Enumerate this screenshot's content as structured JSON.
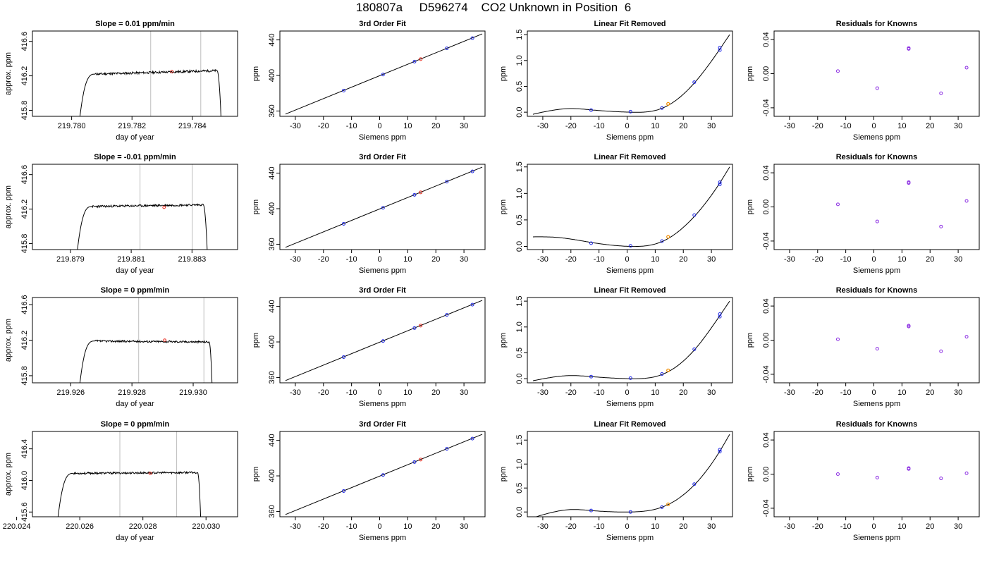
{
  "page": {
    "title": "180807a     D596274    CO2 Unknown in Position  6"
  },
  "colors": {
    "trace": "#000000",
    "marker_vline": "#bdbdbd",
    "unknown_point": "#e8271b",
    "unknown_point_lfr": "#f08c00",
    "known_points": "#1f28e6",
    "residual_points": "#8a2be2"
  },
  "chart_data": [
    {
      "type": "line",
      "panel": "trace",
      "row": 0,
      "title": "Slope =  0.01  ppm/min",
      "xlabel": "day of year",
      "ylabel": "approx. ppm",
      "xlim": [
        219.7787,
        219.7855
      ],
      "ylim": [
        415.73,
        416.72
      ],
      "xticks": [
        219.78,
        219.782,
        219.784
      ],
      "xtick_labels": [
        "219.780",
        "219.782",
        "219.784"
      ],
      "yticks": [
        415.8,
        416.2,
        416.6
      ],
      "ytick_labels": [
        "415.8",
        "416.2",
        "416.6"
      ],
      "vlines": [
        219.78262,
        219.78428
      ],
      "unknown_point": {
        "x": 219.78332,
        "y": 416.25
      },
      "trace": {
        "rise_start": 219.78022,
        "plateau_start": 219.78078,
        "plateau_end": 219.78482,
        "fall_end": 219.78497,
        "base": 415.55,
        "plateau": 416.22,
        "plateau_end_level": 416.26,
        "noise": 0.013,
        "seed": 11
      }
    },
    {
      "type": "scatter",
      "panel": "fit",
      "row": 0,
      "title": "3rd Order Fit",
      "xlabel": "Siemens ppm",
      "ylabel": "ppm",
      "xlim": [
        -35.5,
        37.5
      ],
      "ylim": [
        354,
        450
      ],
      "xticks": [
        -30,
        -20,
        -10,
        0,
        10,
        20,
        30
      ],
      "xtick_labels": [
        "-30",
        "-20",
        "-10",
        "0",
        "10",
        "20",
        "30"
      ],
      "yticks": [
        360,
        400,
        440
      ],
      "ytick_labels": [
        "360",
        "400",
        "440"
      ],
      "fit_line": {
        "x": [
          -33.5,
          36.5
        ],
        "y": [
          356.5,
          446.8
        ]
      },
      "knowns": [
        {
          "x": -12.8,
          "y": 383.0
        },
        {
          "x": 1.2,
          "y": 401.0
        },
        {
          "x": 12.4,
          "y": 415.6
        },
        {
          "x": 23.9,
          "y": 430.5
        },
        {
          "x": 33.0,
          "y": 442.0
        }
      ],
      "unknown": {
        "x": 14.6,
        "y": 418.4
      }
    },
    {
      "type": "scatter",
      "panel": "lfr",
      "row": 0,
      "title": "Linear Fit Removed",
      "xlabel": "Siemens ppm",
      "ylabel": "ppm",
      "xlim": [
        -35.5,
        37.5
      ],
      "ylim": [
        -0.08,
        1.57
      ],
      "xticks": [
        -30,
        -20,
        -10,
        0,
        10,
        20,
        30
      ],
      "xtick_labels": [
        "-30",
        "-20",
        "-10",
        "0",
        "10",
        "20",
        "30"
      ],
      "yticks": [
        0.0,
        0.5,
        1.0,
        1.5
      ],
      "ytick_labels": [
        "0.0",
        "0.5",
        "1.0",
        "1.5"
      ],
      "curve": {
        "x": [
          -33.5,
          -20,
          -12.8,
          1.2,
          12.4,
          24.0,
          33.0,
          36.5
        ],
        "y": [
          -0.04,
          0.07,
          0.045,
          0.0,
          0.075,
          0.57,
          1.22,
          1.5
        ]
      },
      "knowns": [
        {
          "x": -12.8,
          "y": 0.04
        },
        {
          "x": 1.2,
          "y": 0.01
        },
        {
          "x": 12.4,
          "y": 0.08
        },
        {
          "x": 23.9,
          "y": 0.58
        },
        {
          "x": 33.0,
          "y": 1.2
        },
        {
          "x": 33.0,
          "y": 1.25
        }
      ],
      "unknown": {
        "x": 14.6,
        "y": 0.16
      }
    },
    {
      "type": "scatter",
      "panel": "res",
      "row": 0,
      "title": "Residuals for Knowns",
      "xlabel": "Siemens ppm",
      "ylabel": "ppm",
      "xlim": [
        -35.5,
        37.5
      ],
      "ylim": [
        -0.05,
        0.05
      ],
      "xticks": [
        -30,
        -20,
        -10,
        0,
        10,
        20,
        30
      ],
      "xtick_labels": [
        "-30",
        "-20",
        "-10",
        "0",
        "10",
        "20",
        "30"
      ],
      "yticks": [
        -0.04,
        0.0,
        0.04
      ],
      "ytick_labels": [
        "-0.04",
        "0.00",
        "0.04"
      ],
      "points": [
        {
          "x": -12.8,
          "y": 0.003
        },
        {
          "x": 1.2,
          "y": -0.017
        },
        {
          "x": 12.4,
          "y": 0.029
        },
        {
          "x": 12.4,
          "y": 0.03
        },
        {
          "x": 23.9,
          "y": -0.023
        },
        {
          "x": 33.0,
          "y": 0.007
        }
      ]
    },
    {
      "type": "line",
      "panel": "trace",
      "row": 1,
      "title": "Slope =  -0.01  ppm/min",
      "xlabel": "day of year",
      "ylabel": "approx. ppm",
      "xlim": [
        219.87775,
        219.8845
      ],
      "ylim": [
        415.73,
        416.72
      ],
      "xticks": [
        219.879,
        219.881,
        219.883
      ],
      "xtick_labels": [
        "219.879",
        "219.881",
        "219.883"
      ],
      "yticks": [
        415.8,
        416.2,
        416.6
      ],
      "ytick_labels": [
        "415.8",
        "416.2",
        "416.6"
      ],
      "vlines": [
        219.88129,
        219.88301
      ],
      "unknown_point": {
        "x": 219.88208,
        "y": 416.22
      },
      "trace": {
        "rise_start": 219.87918,
        "plateau_start": 219.87972,
        "plateau_end": 219.88337,
        "fall_end": 219.88352,
        "base": 415.55,
        "plateau": 416.23,
        "plateau_end_level": 416.25,
        "noise": 0.012,
        "seed": 23
      }
    },
    {
      "type": "scatter",
      "panel": "fit",
      "row": 1,
      "title": "3rd Order Fit",
      "xlabel": "Siemens ppm",
      "ylabel": "ppm",
      "xlim": [
        -35.5,
        37.5
      ],
      "ylim": [
        354,
        450
      ],
      "xticks": [
        -30,
        -20,
        -10,
        0,
        10,
        20,
        30
      ],
      "xtick_labels": [
        "-30",
        "-20",
        "-10",
        "0",
        "10",
        "20",
        "30"
      ],
      "yticks": [
        360,
        400,
        440
      ],
      "ytick_labels": [
        "360",
        "400",
        "440"
      ],
      "fit_line": {
        "x": [
          -33.5,
          36.5
        ],
        "y": [
          356.5,
          446.8
        ]
      },
      "knowns": [
        {
          "x": -12.8,
          "y": 383.0
        },
        {
          "x": 1.2,
          "y": 401.0
        },
        {
          "x": 12.4,
          "y": 415.6
        },
        {
          "x": 23.9,
          "y": 430.5
        },
        {
          "x": 33.0,
          "y": 442.0
        }
      ],
      "unknown": {
        "x": 14.6,
        "y": 418.4
      }
    },
    {
      "type": "scatter",
      "panel": "lfr",
      "row": 1,
      "title": "Linear Fit Removed",
      "xlabel": "Siemens ppm",
      "ylabel": "ppm",
      "xlim": [
        -35.5,
        37.5
      ],
      "ylim": [
        -0.06,
        1.55
      ],
      "xticks": [
        -30,
        -20,
        -10,
        0,
        10,
        20,
        30
      ],
      "xtick_labels": [
        "-30",
        "-20",
        "-10",
        "0",
        "10",
        "20",
        "30"
      ],
      "yticks": [
        0.0,
        0.5,
        1.0,
        1.5
      ],
      "ytick_labels": [
        "0.0",
        "0.5",
        "1.0",
        "1.5"
      ],
      "curve": {
        "x": [
          -33.5,
          -25,
          -12.8,
          1.2,
          12.4,
          24.0,
          33.0,
          36.5
        ],
        "y": [
          0.18,
          0.17,
          0.075,
          0.0,
          0.09,
          0.57,
          1.2,
          1.5
        ]
      },
      "knowns": [
        {
          "x": -12.8,
          "y": 0.06
        },
        {
          "x": 1.2,
          "y": 0.01
        },
        {
          "x": 12.4,
          "y": 0.1
        },
        {
          "x": 23.9,
          "y": 0.59
        },
        {
          "x": 33.0,
          "y": 1.17
        },
        {
          "x": 33.0,
          "y": 1.21
        }
      ],
      "unknown": {
        "x": 14.6,
        "y": 0.18
      }
    },
    {
      "type": "scatter",
      "panel": "res",
      "row": 1,
      "title": "Residuals for Knowns",
      "xlabel": "Siemens ppm",
      "ylabel": "ppm",
      "xlim": [
        -35.5,
        37.5
      ],
      "ylim": [
        -0.05,
        0.05
      ],
      "xticks": [
        -30,
        -20,
        -10,
        0,
        10,
        20,
        30
      ],
      "xtick_labels": [
        "-30",
        "-20",
        "-10",
        "0",
        "10",
        "20",
        "30"
      ],
      "yticks": [
        -0.04,
        0.0,
        0.04
      ],
      "ytick_labels": [
        "-0.04",
        "0.00",
        "0.04"
      ],
      "points": [
        {
          "x": -12.8,
          "y": 0.003
        },
        {
          "x": 1.2,
          "y": -0.017
        },
        {
          "x": 12.4,
          "y": 0.028
        },
        {
          "x": 12.4,
          "y": 0.029
        },
        {
          "x": 23.9,
          "y": -0.023
        },
        {
          "x": 33.0,
          "y": 0.007
        }
      ]
    },
    {
      "type": "line",
      "panel": "trace",
      "row": 2,
      "title": "Slope =  0  ppm/min",
      "xlabel": "day of year",
      "ylabel": "approx. ppm",
      "xlim": [
        219.92475,
        219.93145
      ],
      "ylim": [
        415.72,
        416.68
      ],
      "xticks": [
        219.926,
        219.928,
        219.93
      ],
      "xtick_labels": [
        "219.926",
        "219.928",
        "219.930"
      ],
      "yticks": [
        415.8,
        416.2,
        416.6
      ],
      "ytick_labels": [
        "415.8",
        "416.2",
        "416.6"
      ],
      "vlines": [
        219.92822,
        219.93035
      ],
      "unknown_point": {
        "x": 219.92907,
        "y": 416.2
      },
      "trace": {
        "rise_start": 219.92625,
        "plateau_start": 219.92678,
        "plateau_end": 219.93052,
        "fall_end": 219.93063,
        "base": 415.55,
        "plateau": 416.19,
        "plateau_end_level": 416.18,
        "noise": 0.011,
        "seed": 37
      }
    },
    {
      "type": "scatter",
      "panel": "fit",
      "row": 2,
      "title": "3rd Order Fit",
      "xlabel": "Siemens ppm",
      "ylabel": "ppm",
      "xlim": [
        -35.5,
        37.5
      ],
      "ylim": [
        354,
        450
      ],
      "xticks": [
        -30,
        -20,
        -10,
        0,
        10,
        20,
        30
      ],
      "xtick_labels": [
        "-30",
        "-20",
        "-10",
        "0",
        "10",
        "20",
        "30"
      ],
      "yticks": [
        360,
        400,
        440
      ],
      "ytick_labels": [
        "360",
        "400",
        "440"
      ],
      "fit_line": {
        "x": [
          -33.5,
          36.5
        ],
        "y": [
          356.5,
          446.8
        ]
      },
      "knowns": [
        {
          "x": -12.8,
          "y": 383.0
        },
        {
          "x": 1.2,
          "y": 401.0
        },
        {
          "x": 12.4,
          "y": 415.6
        },
        {
          "x": 23.9,
          "y": 430.5
        },
        {
          "x": 33.0,
          "y": 442.0
        }
      ],
      "unknown": {
        "x": 14.6,
        "y": 418.4
      }
    },
    {
      "type": "scatter",
      "panel": "lfr",
      "row": 2,
      "title": "Linear Fit Removed",
      "xlabel": "Siemens ppm",
      "ylabel": "ppm",
      "xlim": [
        -35.5,
        37.5
      ],
      "ylim": [
        -0.08,
        1.57
      ],
      "xticks": [
        -30,
        -20,
        -10,
        0,
        10,
        20,
        30
      ],
      "xtick_labels": [
        "-30",
        "-20",
        "-10",
        "0",
        "10",
        "20",
        "30"
      ],
      "yticks": [
        0.0,
        0.5,
        1.0,
        1.5
      ],
      "ytick_labels": [
        "0.0",
        "0.5",
        "1.0",
        "1.5"
      ],
      "curve": {
        "x": [
          -33.5,
          -20,
          -12.8,
          1.2,
          12.4,
          24.0,
          33.0,
          36.5
        ],
        "y": [
          -0.04,
          0.06,
          0.04,
          0.0,
          0.08,
          0.56,
          1.22,
          1.5
        ]
      },
      "knowns": [
        {
          "x": -12.8,
          "y": 0.04
        },
        {
          "x": 1.2,
          "y": 0.01
        },
        {
          "x": 12.4,
          "y": 0.09
        },
        {
          "x": 23.9,
          "y": 0.57
        },
        {
          "x": 33.0,
          "y": 1.2
        },
        {
          "x": 33.0,
          "y": 1.25
        }
      ],
      "unknown": {
        "x": 14.6,
        "y": 0.16
      }
    },
    {
      "type": "scatter",
      "panel": "res",
      "row": 2,
      "title": "Residuals for Knowns",
      "xlabel": "Siemens ppm",
      "ylabel": "ppm",
      "xlim": [
        -35.5,
        37.5
      ],
      "ylim": [
        -0.05,
        0.05
      ],
      "xticks": [
        -30,
        -20,
        -10,
        0,
        10,
        20,
        30
      ],
      "xtick_labels": [
        "-30",
        "-20",
        "-10",
        "0",
        "10",
        "20",
        "30"
      ],
      "yticks": [
        -0.04,
        0.0,
        0.04
      ],
      "ytick_labels": [
        "-0.04",
        "0.00",
        "0.04"
      ],
      "points": [
        {
          "x": -12.8,
          "y": 0.001
        },
        {
          "x": 1.2,
          "y": -0.01
        },
        {
          "x": 12.4,
          "y": 0.016
        },
        {
          "x": 12.4,
          "y": 0.017
        },
        {
          "x": 23.9,
          "y": -0.013
        },
        {
          "x": 33.0,
          "y": 0.004
        }
      ]
    },
    {
      "type": "line",
      "panel": "trace",
      "row": 3,
      "title": "Slope =  0  ppm/min",
      "xlabel": "day of year",
      "ylabel": "approx. ppm",
      "xlim": [
        220.0245,
        220.031
      ],
      "ylim": [
        415.54,
        416.62
      ],
      "xticks": [
        220.024,
        220.026,
        220.028,
        220.03
      ],
      "xtick_labels": [
        "220.024",
        "220.026",
        "220.028",
        "220.030"
      ],
      "yticks": [
        415.6,
        416.0,
        416.4
      ],
      "ytick_labels": [
        "415.6",
        "416.0",
        "416.4"
      ],
      "vlines": [
        220.02727,
        220.02907
      ],
      "unknown_point": {
        "x": 220.02823,
        "y": 416.09
      },
      "trace": {
        "rise_start": 220.02525,
        "plateau_start": 220.0258,
        "plateau_end": 220.02973,
        "fall_end": 220.02985,
        "base": 415.3,
        "plateau": 416.09,
        "plateau_end_level": 416.1,
        "noise": 0.012,
        "seed": 53
      }
    },
    {
      "type": "scatter",
      "panel": "fit",
      "row": 3,
      "title": "3rd Order Fit",
      "xlabel": "Siemens ppm",
      "ylabel": "ppm",
      "xlim": [
        -35.5,
        37.5
      ],
      "ylim": [
        354,
        450
      ],
      "xticks": [
        -30,
        -20,
        -10,
        0,
        10,
        20,
        30
      ],
      "xtick_labels": [
        "-30",
        "-20",
        "-10",
        "0",
        "10",
        "20",
        "30"
      ],
      "yticks": [
        360,
        400,
        440
      ],
      "ytick_labels": [
        "360",
        "400",
        "440"
      ],
      "fit_line": {
        "x": [
          -33.5,
          36.5
        ],
        "y": [
          356.5,
          446.8
        ]
      },
      "knowns": [
        {
          "x": -12.8,
          "y": 383.0
        },
        {
          "x": 1.2,
          "y": 401.0
        },
        {
          "x": 12.4,
          "y": 415.6
        },
        {
          "x": 23.9,
          "y": 430.5
        },
        {
          "x": 33.0,
          "y": 442.0
        }
      ],
      "unknown": {
        "x": 14.6,
        "y": 418.4
      }
    },
    {
      "type": "scatter",
      "panel": "lfr",
      "row": 3,
      "title": "Linear Fit Removed",
      "xlabel": "Siemens ppm",
      "ylabel": "ppm",
      "xlim": [
        -35.5,
        37.5
      ],
      "ylim": [
        -0.1,
        1.68
      ],
      "xticks": [
        -30,
        -20,
        -10,
        0,
        10,
        20,
        30
      ],
      "xtick_labels": [
        "-30",
        "-20",
        "-10",
        "0",
        "10",
        "20",
        "30"
      ],
      "yticks": [
        0.0,
        0.5,
        1.0,
        1.5
      ],
      "ytick_labels": [
        "0.0",
        "0.5",
        "1.0",
        "1.5"
      ],
      "curve": {
        "x": [
          -33.5,
          -20,
          -12.8,
          1.2,
          12.4,
          24.0,
          33.0,
          36.5
        ],
        "y": [
          -0.12,
          0.05,
          0.03,
          0.0,
          0.1,
          0.57,
          1.27,
          1.62
        ]
      },
      "knowns": [
        {
          "x": -12.8,
          "y": 0.03
        },
        {
          "x": 1.2,
          "y": 0.0
        },
        {
          "x": 12.4,
          "y": 0.1
        },
        {
          "x": 23.9,
          "y": 0.58
        },
        {
          "x": 33.0,
          "y": 1.26
        },
        {
          "x": 33.0,
          "y": 1.3
        }
      ],
      "unknown": {
        "x": 14.6,
        "y": 0.16
      }
    },
    {
      "type": "scatter",
      "panel": "res",
      "row": 3,
      "title": "Residuals for Knowns",
      "xlabel": "Siemens ppm",
      "ylabel": "ppm",
      "xlim": [
        -35.5,
        37.5
      ],
      "ylim": [
        -0.05,
        0.05
      ],
      "xticks": [
        -30,
        -20,
        -10,
        0,
        10,
        20,
        30
      ],
      "xtick_labels": [
        "-30",
        "-20",
        "-10",
        "0",
        "10",
        "20",
        "30"
      ],
      "yticks": [
        -0.04,
        0.0,
        0.04
      ],
      "ytick_labels": [
        "-0.04",
        "0.00",
        "0.04"
      ],
      "points": [
        {
          "x": -12.8,
          "y": 0.0
        },
        {
          "x": 1.2,
          "y": -0.004
        },
        {
          "x": 12.4,
          "y": 0.006
        },
        {
          "x": 12.4,
          "y": 0.007
        },
        {
          "x": 23.9,
          "y": -0.005
        },
        {
          "x": 33.0,
          "y": 0.001
        }
      ]
    }
  ]
}
